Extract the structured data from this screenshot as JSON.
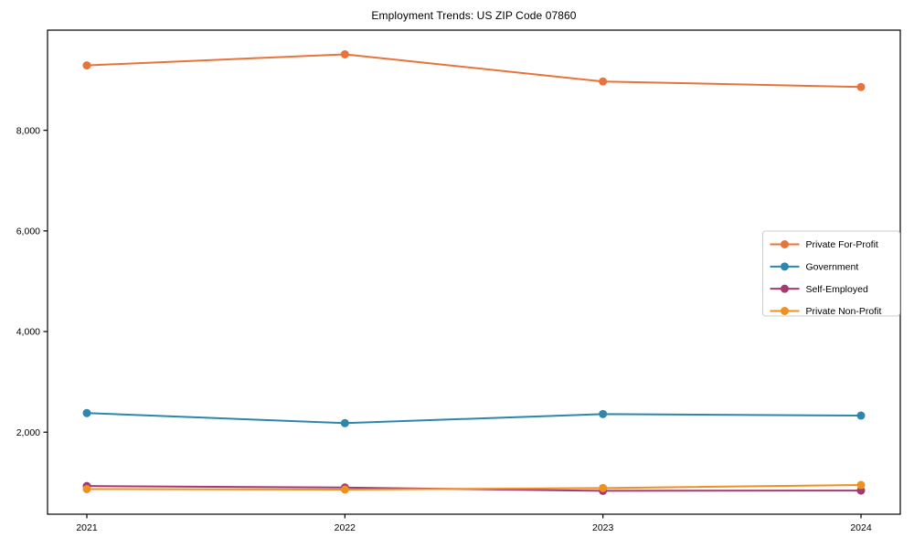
{
  "chart_data": {
    "type": "line",
    "title": "Employment Trends: US ZIP Code 07860",
    "xlabel": "",
    "ylabel": "",
    "categories": [
      "2021",
      "2022",
      "2023",
      "2024"
    ],
    "series": [
      {
        "name": "Private For-Profit",
        "color": "#E8743B",
        "values": [
          9290,
          9510,
          8970,
          8860
        ]
      },
      {
        "name": "Government",
        "color": "#2E86AB",
        "values": [
          2380,
          2180,
          2360,
          2330
        ]
      },
      {
        "name": "Self-Employed",
        "color": "#A23B72",
        "values": [
          930,
          900,
          835,
          840
        ]
      },
      {
        "name": "Private Non-Profit",
        "color": "#ED9121",
        "values": [
          870,
          860,
          890,
          950
        ]
      }
    ],
    "yticks": [
      2000,
      4000,
      6000,
      8000
    ],
    "ytick_labels": [
      "2,000",
      "4,000",
      "6,000",
      "8,000"
    ],
    "ylim": [
      370,
      9990
    ],
    "grid": false,
    "legend_position": "center right",
    "axis_color": "#000000",
    "legend_border_color": "#cccccc"
  }
}
